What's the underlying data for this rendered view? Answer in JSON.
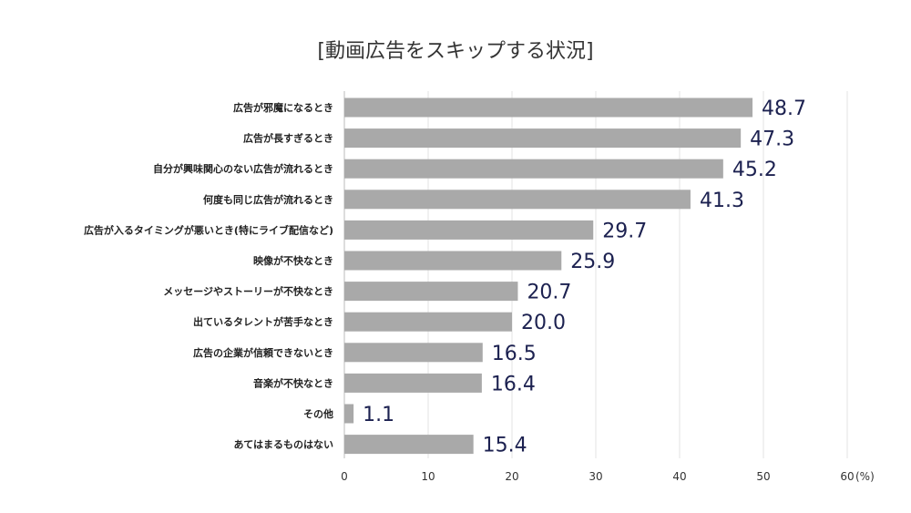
{
  "chart_data": {
    "type": "bar",
    "orientation": "horizontal",
    "title": "[動画広告をスキップする状況]",
    "categories": [
      "広告が邪魔になるとき",
      "広告が長すぎるとき",
      "自分が興味関心のない広告が流れるとき",
      "何度も同じ広告が流れるとき",
      "広告が入るタイミングが悪いとき(特にライブ配信など)",
      "映像が不快なとき",
      "メッセージやストーリーが不快なとき",
      "出ているタレントが苦手なとき",
      "広告の企業が信頼できないとき",
      "音楽が不快なとき",
      "その他",
      "あてはまるものはない"
    ],
    "values": [
      48.7,
      47.3,
      45.2,
      41.3,
      29.7,
      25.9,
      20.7,
      20.0,
      16.5,
      16.4,
      1.1,
      15.4
    ],
    "value_labels": [
      "48.7",
      "47.3",
      "45.2",
      "41.3",
      "29.7",
      "25.9",
      "20.7",
      "20.0",
      "16.5",
      "16.4",
      "1.1",
      "15.4"
    ],
    "xlim": [
      0,
      60
    ],
    "xticks": [
      "0",
      "10",
      "20",
      "30",
      "40",
      "50",
      "60"
    ],
    "x_unit": "(%)",
    "grid": true,
    "bar_color": "#a9a9a9",
    "value_label_color": "#1c2150"
  }
}
